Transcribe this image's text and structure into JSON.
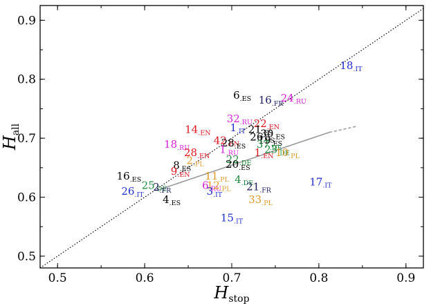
{
  "chart_data": {
    "type": "scatter",
    "title": "",
    "xlabel": "H",
    "xlabel_sub": "stop",
    "ylabel": "H",
    "ylabel_sub": "all",
    "xlim": [
      0.48,
      0.92
    ],
    "ylim": [
      0.48,
      0.925
    ],
    "xticks": [
      0.5,
      0.6,
      0.7,
      0.8,
      0.9
    ],
    "yticks": [
      0.5,
      0.6,
      0.7,
      0.8,
      0.9
    ],
    "tick_labels_x": [
      "0.5",
      "0.6",
      "0.7",
      "0.8",
      "0.9"
    ],
    "tick_labels_y": [
      "0.5",
      "0.6",
      "0.7",
      "0.8",
      "0.9"
    ],
    "colors": {
      "IT": "#1f2ecf",
      "ES": "#000000",
      "EN": "#e0141e",
      "RU": "#d81fd8",
      "DE": "#1e8a3c",
      "PL": "#e09a2a",
      "FR": "#1a1a60"
    },
    "diagonal": {
      "x": [
        0.48,
        0.92
      ],
      "y": [
        0.48,
        0.92
      ],
      "style": "dotted",
      "color": "#000000"
    },
    "fit_line": {
      "solid": {
        "x": [
          0.615,
          0.812
        ],
        "y": [
          0.612,
          0.71
        ]
      },
      "dashed": {
        "x": [
          0.812,
          0.843
        ],
        "y": [
          0.71,
          0.72
        ]
      },
      "color": "#999999"
    },
    "points": [
      {
        "num": "18",
        "lang": "IT",
        "x": 0.837,
        "y": 0.817
      },
      {
        "num": "6",
        "lang": "ES",
        "x": 0.712,
        "y": 0.767
      },
      {
        "num": "16",
        "lang": "FR",
        "x": 0.745,
        "y": 0.759
      },
      {
        "num": "24",
        "lang": "RU",
        "x": 0.771,
        "y": 0.762
      },
      {
        "num": "32",
        "lang": "RU",
        "x": 0.709,
        "y": 0.727
      },
      {
        "num": "22",
        "lang": "EN",
        "x": 0.74,
        "y": 0.719
      },
      {
        "num": "1",
        "lang": "IT",
        "x": 0.707,
        "y": 0.712
      },
      {
        "num": "21",
        "lang": "ES",
        "x": 0.733,
        "y": 0.709
      },
      {
        "num": "30",
        "lang": "ES",
        "x": 0.747,
        "y": 0.702
      },
      {
        "num": "14",
        "lang": "EN",
        "x": 0.661,
        "y": 0.709
      },
      {
        "num": "26",
        "lang": "ES",
        "x": 0.735,
        "y": 0.696
      },
      {
        "num": "19",
        "lang": "ES",
        "x": 0.744,
        "y": 0.691
      },
      {
        "num": "42",
        "lang": "EN",
        "x": 0.694,
        "y": 0.69
      },
      {
        "num": "28",
        "lang": "ES",
        "x": 0.702,
        "y": 0.686
      },
      {
        "num": "18",
        "lang": "RU",
        "x": 0.637,
        "y": 0.684
      },
      {
        "num": "37",
        "lang": "DE",
        "x": 0.743,
        "y": 0.684
      },
      {
        "num": "28",
        "lang": "EN",
        "x": 0.66,
        "y": 0.67
      },
      {
        "num": "1",
        "lang": "RU",
        "x": 0.697,
        "y": 0.675
      },
      {
        "num": "1",
        "lang": "EN",
        "x": 0.737,
        "y": 0.67
      },
      {
        "num": "23",
        "lang": "DE",
        "x": 0.752,
        "y": 0.675
      },
      {
        "num": "10",
        "lang": "PL",
        "x": 0.764,
        "y": 0.67
      },
      {
        "num": "2",
        "lang": "PL",
        "x": 0.658,
        "y": 0.656
      },
      {
        "num": "22",
        "lang": "DE",
        "x": 0.708,
        "y": 0.658
      },
      {
        "num": "8",
        "lang": "ES",
        "x": 0.643,
        "y": 0.648
      },
      {
        "num": "20",
        "lang": "ES",
        "x": 0.707,
        "y": 0.65
      },
      {
        "num": "9",
        "lang": "EN",
        "x": 0.641,
        "y": 0.638
      },
      {
        "num": "16",
        "lang": "ES",
        "x": 0.582,
        "y": 0.63
      },
      {
        "num": "11",
        "lang": "PL",
        "x": 0.683,
        "y": 0.63
      },
      {
        "num": "4",
        "lang": "DE",
        "x": 0.714,
        "y": 0.624
      },
      {
        "num": "17",
        "lang": "IT",
        "x": 0.802,
        "y": 0.62
      },
      {
        "num": "25",
        "lang": "DE",
        "x": 0.611,
        "y": 0.614
      },
      {
        "num": "2",
        "lang": "FR",
        "x": 0.62,
        "y": 0.611
      },
      {
        "num": "6",
        "lang": "RU",
        "x": 0.677,
        "y": 0.614
      },
      {
        "num": "12",
        "lang": "PL",
        "x": 0.685,
        "y": 0.614
      },
      {
        "num": "21",
        "lang": "FR",
        "x": 0.731,
        "y": 0.612
      },
      {
        "num": "26",
        "lang": "IT",
        "x": 0.586,
        "y": 0.604
      },
      {
        "num": "3",
        "lang": "IT",
        "x": 0.68,
        "y": 0.604
      },
      {
        "num": "4",
        "lang": "ES",
        "x": 0.631,
        "y": 0.59
      },
      {
        "num": "33",
        "lang": "PL",
        "x": 0.733,
        "y": 0.59
      },
      {
        "num": "15",
        "lang": "IT",
        "x": 0.7,
        "y": 0.559
      }
    ]
  }
}
